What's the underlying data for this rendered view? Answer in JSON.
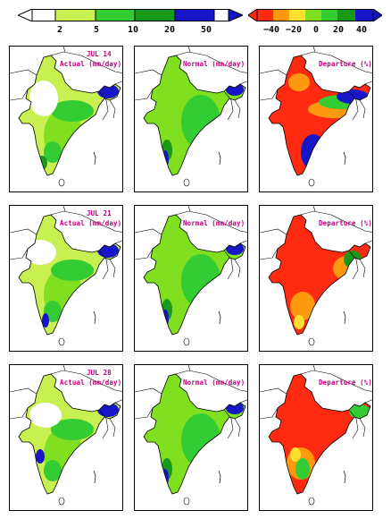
{
  "colors": {
    "precip_bins": [
      "#c8f050",
      "#80e020",
      "#33cc33",
      "#189a18",
      "#1616c8"
    ],
    "departure_bins": [
      "#ff2a10",
      "#ff9a10",
      "#ffe030",
      "#80e020",
      "#33cc33",
      "#189a18",
      "#1616c8"
    ],
    "label": "#c0007a"
  },
  "legend_precip": {
    "ticks": [
      "2",
      "5",
      "10",
      "20",
      "50"
    ]
  },
  "legend_departure": {
    "ticks": [
      "−40",
      "−20",
      "0",
      "20",
      "40"
    ]
  },
  "rows": [
    {
      "date": "JUL 14",
      "actual_label": "Actual (mm/day)",
      "normal_label": "Normal (mm/day)",
      "departure_label": "Departure (%)"
    },
    {
      "date": "JUL 21",
      "actual_label": "Actual (mm/day)",
      "normal_label": "Normal (mm/day)",
      "departure_label": "Departure (%)"
    },
    {
      "date": "JUL 28",
      "actual_label": "Actual (mm/day)",
      "normal_label": "Normal (mm/day)",
      "departure_label": "Departure (%)"
    }
  ]
}
